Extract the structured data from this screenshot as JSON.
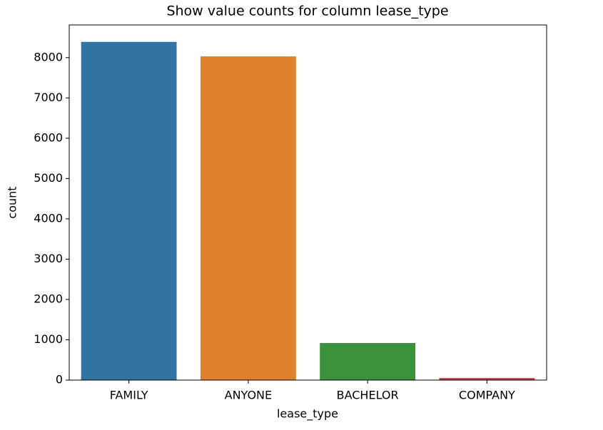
{
  "chart_data": {
    "type": "bar",
    "title": "Show value counts for column lease_type",
    "x_label": "lease_type",
    "y_label": "count",
    "categories": [
      "FAMILY",
      "ANYONE",
      "BACHELOR",
      "COMPANY"
    ],
    "values": [
      8390,
      8030,
      920,
      50
    ],
    "colors": [
      "#3274a1",
      "#e1812c",
      "#3a923a",
      "#c03d3e"
    ],
    "ylim": [
      0,
      8810
    ],
    "yticks": [
      0,
      1000,
      2000,
      3000,
      4000,
      5000,
      6000,
      7000,
      8000
    ],
    "grid": false
  }
}
